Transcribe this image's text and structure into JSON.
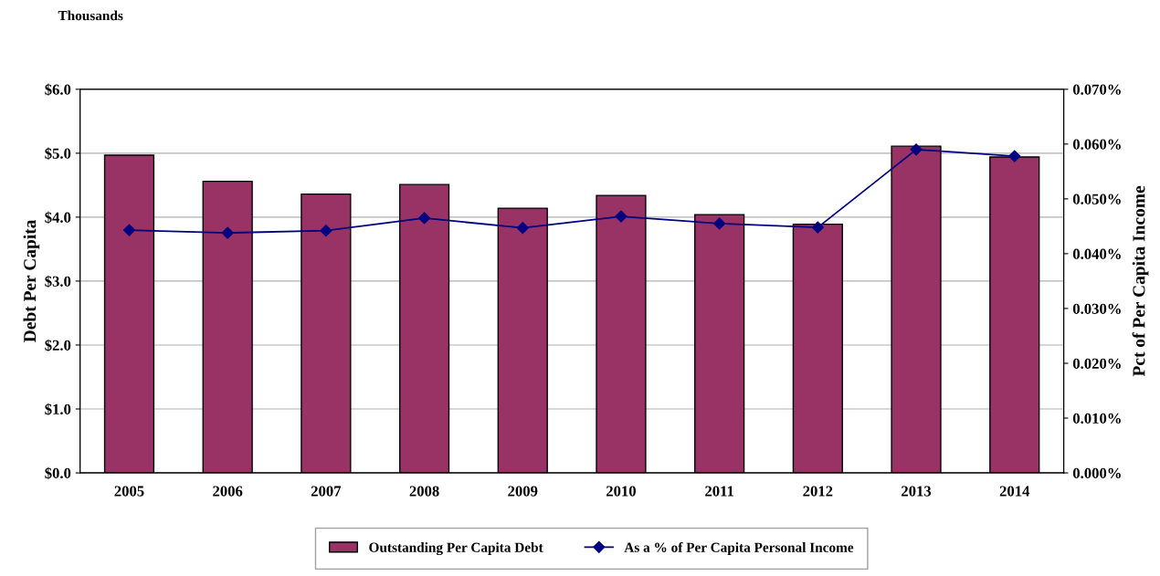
{
  "chart_data": {
    "type": "bar",
    "ylabel": "Debt Per Capita",
    "y2label": "Pct of Per Capita Income",
    "annotations": [
      "Thousands"
    ],
    "categories": [
      "2005",
      "2006",
      "2007",
      "2008",
      "2009",
      "2010",
      "2011",
      "2012",
      "2013",
      "2014"
    ],
    "series": [
      {
        "name": "Outstanding Per Capita Debt",
        "color": "#993366",
        "values": [
          4.97,
          4.56,
          4.36,
          4.51,
          4.14,
          4.34,
          4.04,
          3.89,
          5.11,
          4.94
        ]
      },
      {
        "name": "As a % of Per Capita Personal Income",
        "type": "line",
        "axis": "y2",
        "color": "#000080",
        "marker": "diamond",
        "line_style": "solid",
        "values": [
          0.0443,
          0.0438,
          0.0442,
          0.0465,
          0.0447,
          0.0468,
          0.0455,
          0.0448,
          0.059,
          0.0578
        ]
      }
    ],
    "ylim": [
      0,
      6
    ],
    "yticks": [
      {
        "value": 0,
        "label": "$0.0"
      },
      {
        "value": 1,
        "label": "$1.0"
      },
      {
        "value": 2,
        "label": "$2.0"
      },
      {
        "value": 3,
        "label": "$3.0"
      },
      {
        "value": 4,
        "label": "$4.0"
      },
      {
        "value": 5,
        "label": "$5.0"
      },
      {
        "value": 6,
        "label": "$6.0"
      }
    ],
    "y2lim": [
      0,
      0.07
    ],
    "y2ticks": [
      {
        "value": 0,
        "label": "0.000%"
      },
      {
        "value": 0.01,
        "label": "0.010%"
      },
      {
        "value": 0.02,
        "label": "0.020%"
      },
      {
        "value": 0.03,
        "label": "0.030%"
      },
      {
        "value": 0.04,
        "label": "0.040%"
      },
      {
        "value": 0.05,
        "label": "0.050%"
      },
      {
        "value": 0.06,
        "label": "0.060%"
      },
      {
        "value": 0.07,
        "label": "0.070%"
      }
    ],
    "grid": "y",
    "legend": "bottom"
  }
}
